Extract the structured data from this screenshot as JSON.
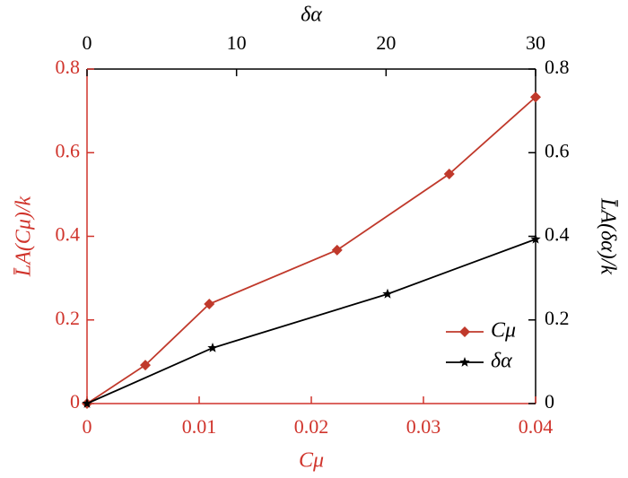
{
  "chart_data": {
    "type": "line",
    "xlabel": "Cμ",
    "x2label": "δα",
    "ylabel": "L̄A(Cμ)/k",
    "y2label": "L̄A(δα)/k",
    "xlim": [
      0,
      0.04
    ],
    "xticks": [
      0,
      0.01,
      0.02,
      0.03,
      0.04
    ],
    "x2lim": [
      0,
      30
    ],
    "x2ticks": [
      0,
      10,
      20,
      30
    ],
    "ylim": [
      0,
      0.8
    ],
    "yticks": [
      0,
      0.2,
      0.4,
      0.6,
      0.8
    ],
    "y2lim": [
      0,
      0.8
    ],
    "y2ticks": [
      0,
      0.2,
      0.4,
      0.6,
      0.8
    ],
    "axis_color": "#d0342c",
    "axis2_color": "#000000",
    "legend": "lower right",
    "series": [
      {
        "name": "Cμ",
        "color": "#c0392b",
        "marker": "diamond",
        "x": [
          0,
          0.0052,
          0.0109,
          0.0223,
          0.0323,
          0.04
        ],
        "values": [
          0,
          0.092,
          0.238,
          0.367,
          0.549,
          0.733
        ]
      },
      {
        "name": "δα",
        "color": "#000000",
        "marker": "star",
        "axis": "y2",
        "xaxis": "x2",
        "x": [
          0,
          8.4,
          20.1,
          30
        ],
        "values": [
          0,
          0.133,
          0.262,
          0.393
        ]
      }
    ]
  }
}
